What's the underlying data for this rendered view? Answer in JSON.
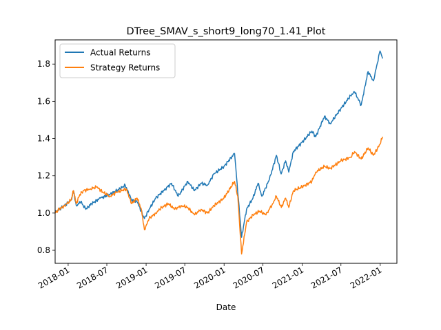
{
  "chart_data": {
    "type": "line",
    "title": "DTree_SMAV_s_short9_long70_1.41_Plot",
    "xlabel": "Date",
    "ylabel": "",
    "xlim": [
      "2017-11-01",
      "2022-03-20"
    ],
    "ylim": [
      0.73,
      1.93
    ],
    "x_ticks": [
      "2018-01",
      "2018-07",
      "2019-01",
      "2019-07",
      "2020-01",
      "2020-07",
      "2021-01",
      "2021-07",
      "2022-01"
    ],
    "y_ticks": [
      "0.8",
      "1.0",
      "1.2",
      "1.4",
      "1.6",
      "1.8"
    ],
    "y_tick_values": [
      0.8,
      1.0,
      1.2,
      1.4,
      1.6,
      1.8
    ],
    "grid": false,
    "legend_position": "upper-left",
    "series": [
      {
        "name": "Actual Returns",
        "color": "#1f77b4",
        "points": [
          [
            "2017-11-01",
            1.0
          ],
          [
            "2017-11-20",
            1.02
          ],
          [
            "2017-12-15",
            1.04
          ],
          [
            "2018-01-15",
            1.07
          ],
          [
            "2018-01-26",
            1.12
          ],
          [
            "2018-02-08",
            1.04
          ],
          [
            "2018-03-01",
            1.06
          ],
          [
            "2018-03-25",
            1.02
          ],
          [
            "2018-04-20",
            1.05
          ],
          [
            "2018-06-01",
            1.08
          ],
          [
            "2018-07-15",
            1.1
          ],
          [
            "2018-09-01",
            1.13
          ],
          [
            "2018-09-25",
            1.15
          ],
          [
            "2018-10-25",
            1.07
          ],
          [
            "2018-11-20",
            1.06
          ],
          [
            "2018-12-24",
            0.97
          ],
          [
            "2019-01-15",
            1.02
          ],
          [
            "2019-02-15",
            1.08
          ],
          [
            "2019-04-01",
            1.13
          ],
          [
            "2019-04-30",
            1.16
          ],
          [
            "2019-05-31",
            1.09
          ],
          [
            "2019-07-15",
            1.17
          ],
          [
            "2019-08-15",
            1.12
          ],
          [
            "2019-09-15",
            1.16
          ],
          [
            "2019-10-15",
            1.15
          ],
          [
            "2019-11-15",
            1.21
          ],
          [
            "2019-12-31",
            1.25
          ],
          [
            "2020-02-19",
            1.32
          ],
          [
            "2020-03-23",
            0.87
          ],
          [
            "2020-04-15",
            1.02
          ],
          [
            "2020-05-15",
            1.08
          ],
          [
            "2020-06-08",
            1.16
          ],
          [
            "2020-06-26",
            1.09
          ],
          [
            "2020-07-31",
            1.18
          ],
          [
            "2020-09-02",
            1.31
          ],
          [
            "2020-09-24",
            1.21
          ],
          [
            "2020-10-15",
            1.28
          ],
          [
            "2020-10-30",
            1.22
          ],
          [
            "2020-11-20",
            1.33
          ],
          [
            "2020-12-31",
            1.38
          ],
          [
            "2021-02-15",
            1.44
          ],
          [
            "2021-03-05",
            1.41
          ],
          [
            "2021-04-15",
            1.52
          ],
          [
            "2021-05-12",
            1.48
          ],
          [
            "2021-06-30",
            1.56
          ],
          [
            "2021-08-15",
            1.63
          ],
          [
            "2021-09-03",
            1.65
          ],
          [
            "2021-10-04",
            1.58
          ],
          [
            "2021-11-05",
            1.76
          ],
          [
            "2021-11-30",
            1.71
          ],
          [
            "2021-12-31",
            1.87
          ],
          [
            "2022-01-12",
            1.83
          ]
        ]
      },
      {
        "name": "Strategy Returns",
        "color": "#ff7f0e",
        "points": [
          [
            "2017-11-01",
            1.0
          ],
          [
            "2017-11-20",
            1.02
          ],
          [
            "2017-12-15",
            1.04
          ],
          [
            "2018-01-15",
            1.07
          ],
          [
            "2018-01-26",
            1.12
          ],
          [
            "2018-02-08",
            1.05
          ],
          [
            "2018-02-25",
            1.1
          ],
          [
            "2018-03-15",
            1.12
          ],
          [
            "2018-04-15",
            1.13
          ],
          [
            "2018-05-15",
            1.14
          ],
          [
            "2018-06-15",
            1.11
          ],
          [
            "2018-07-15",
            1.09
          ],
          [
            "2018-08-15",
            1.11
          ],
          [
            "2018-09-30",
            1.13
          ],
          [
            "2018-10-25",
            1.05
          ],
          [
            "2018-11-20",
            1.08
          ],
          [
            "2018-12-10",
            1.02
          ],
          [
            "2018-12-24",
            0.91
          ],
          [
            "2019-01-15",
            0.97
          ],
          [
            "2019-02-15",
            1.0
          ],
          [
            "2019-03-15",
            1.03
          ],
          [
            "2019-04-15",
            1.05
          ],
          [
            "2019-05-15",
            1.02
          ],
          [
            "2019-06-15",
            1.04
          ],
          [
            "2019-07-15",
            1.03
          ],
          [
            "2019-08-15",
            0.99
          ],
          [
            "2019-09-15",
            1.02
          ],
          [
            "2019-10-15",
            1.0
          ],
          [
            "2019-11-15",
            1.04
          ],
          [
            "2019-12-31",
            1.08
          ],
          [
            "2020-02-19",
            1.17
          ],
          [
            "2020-03-05",
            1.09
          ],
          [
            "2020-03-23",
            0.78
          ],
          [
            "2020-04-15",
            0.95
          ],
          [
            "2020-05-15",
            0.99
          ],
          [
            "2020-06-15",
            1.01
          ],
          [
            "2020-07-15",
            0.99
          ],
          [
            "2020-08-15",
            1.05
          ],
          [
            "2020-09-02",
            1.09
          ],
          [
            "2020-09-25",
            1.03
          ],
          [
            "2020-10-15",
            1.08
          ],
          [
            "2020-10-30",
            1.03
          ],
          [
            "2020-11-20",
            1.12
          ],
          [
            "2020-12-31",
            1.14
          ],
          [
            "2021-02-15",
            1.17
          ],
          [
            "2021-03-05",
            1.22
          ],
          [
            "2021-04-15",
            1.25
          ],
          [
            "2021-05-12",
            1.24
          ],
          [
            "2021-06-30",
            1.28
          ],
          [
            "2021-08-15",
            1.3
          ],
          [
            "2021-09-03",
            1.33
          ],
          [
            "2021-10-04",
            1.29
          ],
          [
            "2021-11-05",
            1.35
          ],
          [
            "2021-11-30",
            1.31
          ],
          [
            "2021-12-31",
            1.37
          ],
          [
            "2022-01-12",
            1.41
          ]
        ]
      }
    ]
  }
}
